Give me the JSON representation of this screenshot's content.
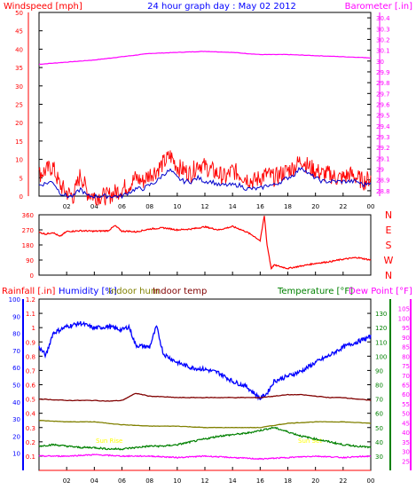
{
  "colors": {
    "wind": "#ff0000",
    "gust": "#0000cc",
    "barometer": "#ff00ff",
    "direction": "#ff0000",
    "rainfall": "#ff0000",
    "humidity": "#0000ff",
    "indoor_hum": "#808000",
    "indoor_temp": "#800000",
    "temperature": "#008000",
    "dewpoint": "#ff00ff",
    "axis_tick": "#000000",
    "grid": "#808080"
  },
  "chart_data": [
    {
      "type": "line",
      "title": "24 hour graph day : May 02 2012",
      "ylabel": "Windspeed [mph]",
      "y2label": "Barometer [.in]",
      "x_tick_labels": [
        "02",
        "04",
        "06",
        "08",
        "10",
        "12",
        "14",
        "16",
        "18",
        "20",
        "22",
        "00"
      ],
      "ylim": [
        0,
        50
      ],
      "y_ticks": [
        "0",
        "5",
        "10",
        "15",
        "20",
        "25",
        "30",
        "35",
        "40",
        "45",
        "50"
      ],
      "y2lim": [
        28.75,
        30.45
      ],
      "y2_ticks": [
        "28.8",
        "28.9",
        "29",
        "29.1",
        "29.2",
        "29.3",
        "29.4",
        "29.5",
        "29.6",
        "29.7",
        "29.8",
        "29.9",
        "30",
        "30.1",
        "30.2",
        "30.3",
        "30.4"
      ],
      "grid": false,
      "series": [
        {
          "axis": "wind",
          "x": [
            0,
            1,
            1.5,
            2,
            2.5,
            3,
            3.5,
            4,
            5,
            6,
            6.5,
            7,
            7.5,
            8,
            8.5,
            9,
            9.5,
            10,
            10.5,
            11,
            11.5,
            12,
            12.5,
            13,
            13.5,
            14,
            14.5,
            15,
            15.5,
            16,
            16.5,
            17,
            17.5,
            18,
            18.5,
            19,
            19.5,
            20,
            20.5,
            21,
            21.5,
            22,
            22.5,
            23,
            23.5,
            24
          ],
          "values": [
            6,
            8,
            3,
            1,
            0,
            6,
            1,
            0,
            0,
            2,
            3,
            5,
            4,
            6,
            7,
            9,
            11,
            8,
            7,
            6,
            9,
            8,
            7,
            6,
            5,
            7,
            6,
            5,
            4,
            5,
            6,
            5,
            6,
            7,
            8,
            10,
            8,
            7,
            6,
            6,
            5,
            5,
            6,
            5,
            4,
            5
          ]
        },
        {
          "axis": "wind",
          "x": [
            0,
            1,
            1.5,
            2,
            2.5,
            3,
            3.5,
            4,
            5,
            6,
            6.5,
            7,
            7.5,
            8,
            8.5,
            9,
            9.5,
            10,
            10.5,
            11,
            11.5,
            12,
            12.5,
            13,
            13.5,
            14,
            14.5,
            15,
            15.5,
            16,
            16.5,
            17,
            17.5,
            18,
            18.5,
            19,
            19.5,
            20,
            20.5,
            21,
            21.5,
            22,
            22.5,
            23,
            23.5,
            24
          ],
          "values": [
            3,
            4,
            1,
            0,
            0,
            2,
            0,
            0,
            0,
            0,
            1,
            2,
            2,
            3,
            4,
            6,
            7,
            5,
            4,
            4,
            5,
            4,
            4,
            3,
            3,
            3,
            3,
            2,
            2,
            2,
            3,
            3,
            4,
            5,
            6,
            8,
            6,
            5,
            4,
            4,
            4,
            4,
            4,
            4,
            3,
            4
          ]
        },
        {
          "axis": "barometer",
          "x": [
            0,
            2,
            4,
            6,
            8,
            10,
            12,
            14,
            16,
            18,
            20,
            22,
            24
          ],
          "values": [
            29.97,
            29.99,
            30.01,
            30.04,
            30.07,
            30.08,
            30.09,
            30.08,
            30.06,
            30.06,
            30.05,
            30.04,
            30.03
          ]
        }
      ]
    },
    {
      "type": "line",
      "y_ticks": [
        "0",
        "90",
        "180",
        "270",
        "360"
      ],
      "y_right_labels": [
        "N",
        "W",
        "S",
        "E",
        "N"
      ],
      "ylim": [
        0,
        360
      ],
      "series": [
        {
          "axis": "direction",
          "x": [
            0,
            0.5,
            1,
            1.5,
            2,
            3,
            4,
            5,
            5.5,
            6,
            6.5,
            7,
            8,
            9,
            10,
            11,
            12,
            13,
            14,
            14.5,
            15,
            15.5,
            16,
            16.3,
            16.5,
            16.8,
            17,
            18,
            19,
            20,
            21,
            22,
            23,
            24
          ],
          "values": [
            255,
            245,
            255,
            230,
            260,
            265,
            262,
            265,
            295,
            262,
            262,
            258,
            275,
            282,
            270,
            275,
            288,
            270,
            290,
            275,
            258,
            235,
            205,
            355,
            180,
            40,
            60,
            40,
            55,
            70,
            80,
            95,
            105,
            90
          ]
        }
      ]
    },
    {
      "type": "line",
      "y_left_labels": [
        "Rainfall [.in]",
        "Humidity [%]",
        "Indoor hum",
        "Indoor temp"
      ],
      "y_right_labels": [
        "Temperature [°F]",
        "Dew Point [°F]"
      ],
      "rain_ticks": [
        "0.1",
        "0.2",
        "0.3",
        "0.4",
        "0.5",
        "0.6",
        "0.7",
        "0.8",
        "0.9",
        "1",
        "1.1",
        "1.2"
      ],
      "humidity_ticks": [
        "10",
        "20",
        "30",
        "40",
        "50",
        "60",
        "70",
        "80",
        "90",
        "100"
      ],
      "temperature_ticks": [
        "30",
        "40",
        "50",
        "60",
        "70",
        "80",
        "90",
        "100",
        "110",
        "120",
        "130"
      ],
      "dewpoint_ticks": [
        "25",
        "30",
        "35",
        "40",
        "45",
        "50",
        "55",
        "60",
        "65",
        "70",
        "75",
        "80",
        "85",
        "90",
        "95",
        "100",
        "105"
      ],
      "sun_labels": [
        "Sun Rise",
        "Sun Set"
      ],
      "series": [
        {
          "axis": "humidity",
          "x": [
            0,
            0.5,
            1,
            2,
            3,
            4,
            5,
            6,
            6.5,
            7,
            8,
            8.5,
            9,
            10,
            11,
            12,
            13,
            14,
            15,
            16,
            16.5,
            17,
            18,
            19,
            20,
            21,
            22,
            23,
            24
          ],
          "values": [
            72,
            67,
            80,
            84,
            86,
            83,
            84,
            82,
            84,
            73,
            72,
            84,
            68,
            63,
            60,
            59,
            57,
            52,
            49,
            42,
            45,
            52,
            55,
            58,
            63,
            67,
            72,
            75,
            78
          ]
        },
        {
          "axis": "indoor_temp",
          "x": [
            0,
            2,
            4,
            5,
            6,
            7,
            8,
            10,
            12,
            14,
            16,
            17,
            18,
            19,
            20,
            21,
            22,
            23,
            24
          ],
          "values": [
            70,
            69,
            69,
            68.5,
            69,
            74,
            72,
            71,
            71,
            71,
            71,
            72,
            73,
            73,
            72,
            71,
            71,
            70,
            69
          ]
        },
        {
          "axis": "indoor_hum",
          "x": [
            0,
            2,
            4,
            6,
            8,
            10,
            12,
            14,
            16,
            18,
            20,
            22,
            24
          ],
          "values": [
            55,
            54,
            54,
            52,
            51,
            51,
            50,
            50,
            50,
            53,
            54,
            54,
            53
          ]
        },
        {
          "axis": "temperature",
          "x": [
            0,
            1,
            2,
            3,
            4,
            5,
            6,
            7,
            8,
            9,
            10,
            11,
            12,
            13,
            14,
            15,
            16,
            17,
            18,
            19,
            20,
            21,
            22,
            23,
            24
          ],
          "values": [
            37,
            38,
            37,
            36,
            36,
            35,
            35,
            36,
            37,
            37,
            38,
            40,
            42,
            44,
            45,
            46,
            48,
            50,
            47,
            44,
            42,
            40,
            38,
            37,
            36
          ]
        },
        {
          "axis": "dewpoint",
          "x": [
            0,
            2,
            4,
            6,
            8,
            10,
            12,
            14,
            16,
            18,
            20,
            22,
            24
          ],
          "values": [
            30,
            30,
            31,
            30,
            30,
            29,
            30,
            29,
            28,
            29,
            30,
            29,
            30
          ]
        },
        {
          "axis": "rainfall",
          "x": [
            0,
            24
          ],
          "values": [
            0,
            0
          ]
        }
      ]
    }
  ]
}
